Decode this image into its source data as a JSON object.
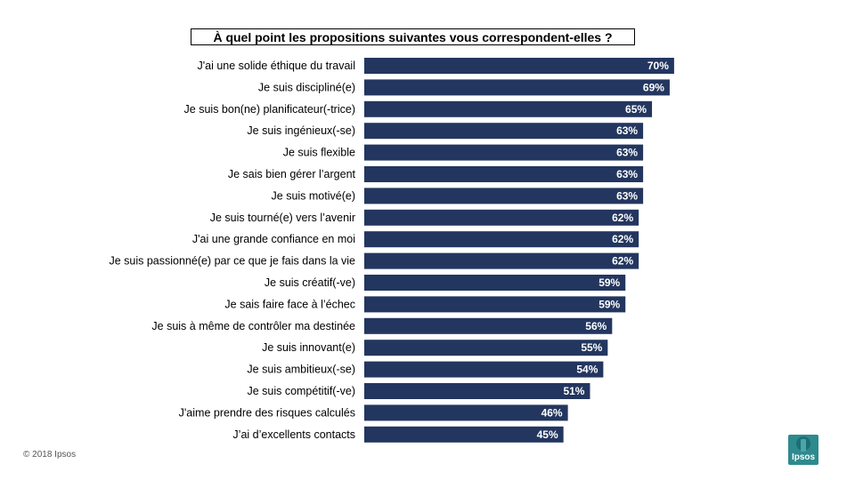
{
  "chart_data": {
    "type": "bar",
    "orientation": "horizontal",
    "title": "À quel point les propositions suivantes vous correspondent-elles ?",
    "categories": [
      "J'ai une solide éthique du travail",
      "Je suis discipliné(e)",
      "Je suis bon(ne) planificateur(-trice)",
      "Je suis ingénieux(-se)",
      "Je suis flexible",
      "Je sais bien gérer l’argent",
      "Je suis motivé(e)",
      "Je suis tourné(e) vers l’avenir",
      "J'ai une grande confiance en moi",
      "Je suis passionné(e) par ce que je fais dans la vie",
      "Je suis créatif(-ve)",
      "Je sais faire face à l’échec",
      "Je suis à même de contrôler ma destinée",
      "Je suis innovant(e)",
      "Je suis ambitieux(-se)",
      "Je suis compétitif(-ve)",
      "J'aime prendre des risques calculés",
      "J’ai d’excellents contacts"
    ],
    "values": [
      70,
      69,
      65,
      63,
      63,
      63,
      63,
      62,
      62,
      62,
      59,
      59,
      56,
      55,
      54,
      51,
      46,
      45
    ],
    "value_labels": [
      "70%",
      "69%",
      "65%",
      "63%",
      "63%",
      "63%",
      "63%",
      "62%",
      "62%",
      "62%",
      "59%",
      "59%",
      "56%",
      "55%",
      "54%",
      "51%",
      "46%",
      "45%"
    ],
    "bar_color": "#23365f",
    "xlim": [
      0,
      100
    ],
    "grid": false,
    "legend": "none"
  },
  "footer": {
    "copyright": "© 2018 Ipsos",
    "logo_text": "Ipsos",
    "logo_color": "#2e8a8e"
  }
}
